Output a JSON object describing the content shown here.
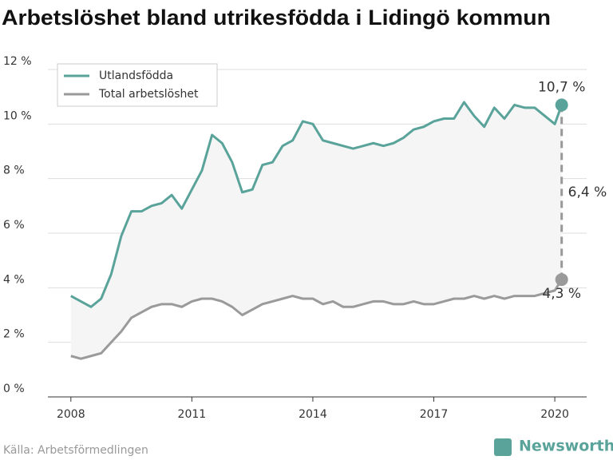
{
  "chart_data": {
    "type": "line",
    "title": "Arbetslöshet bland utrikesfödda i Lidingö kommun",
    "source": "Källa: Arbetsförmedlingen",
    "brand": "Newsworthy",
    "x": [
      2008.0,
      2008.25,
      2008.5,
      2008.75,
      2009.0,
      2009.25,
      2009.5,
      2009.75,
      2010.0,
      2010.25,
      2010.5,
      2010.75,
      2011.0,
      2011.25,
      2011.5,
      2011.75,
      2012.0,
      2012.25,
      2012.5,
      2012.75,
      2013.0,
      2013.25,
      2013.5,
      2013.75,
      2014.0,
      2014.25,
      2014.5,
      2014.75,
      2015.0,
      2015.25,
      2015.5,
      2015.75,
      2016.0,
      2016.25,
      2016.5,
      2016.75,
      2017.0,
      2017.25,
      2017.5,
      2017.75,
      2018.0,
      2018.25,
      2018.5,
      2018.75,
      2019.0,
      2019.25,
      2019.5,
      2019.75,
      2020.0,
      2020.17
    ],
    "series": [
      {
        "name": "Utlandsfödda",
        "color": "#5aa39a",
        "end_label": "10,7 %",
        "values": [
          3.7,
          3.5,
          3.3,
          3.6,
          4.5,
          5.9,
          6.8,
          6.8,
          7.0,
          7.1,
          7.4,
          6.9,
          7.6,
          8.3,
          9.6,
          9.3,
          8.6,
          7.5,
          7.6,
          8.5,
          8.6,
          9.2,
          9.4,
          10.1,
          10.0,
          9.4,
          9.3,
          9.2,
          9.1,
          9.2,
          9.3,
          9.2,
          9.3,
          9.5,
          9.8,
          9.9,
          10.1,
          10.2,
          10.2,
          10.8,
          10.3,
          9.9,
          10.6,
          10.2,
          10.7,
          10.6,
          10.6,
          10.3,
          10.0,
          10.7
        ]
      },
      {
        "name": "Total arbetslöshet",
        "color": "#9a9a9a",
        "end_label": "4,3 %",
        "values": [
          1.5,
          1.4,
          1.5,
          1.6,
          2.0,
          2.4,
          2.9,
          3.1,
          3.3,
          3.4,
          3.4,
          3.3,
          3.5,
          3.6,
          3.6,
          3.5,
          3.3,
          3.0,
          3.2,
          3.4,
          3.5,
          3.6,
          3.7,
          3.6,
          3.6,
          3.4,
          3.5,
          3.3,
          3.3,
          3.4,
          3.5,
          3.5,
          3.4,
          3.4,
          3.5,
          3.4,
          3.4,
          3.5,
          3.6,
          3.6,
          3.7,
          3.6,
          3.7,
          3.6,
          3.7,
          3.7,
          3.7,
          3.8,
          3.9,
          4.3
        ]
      }
    ],
    "difference_label": "6,4 %",
    "xlim": [
      2007.43,
      2020.79
    ],
    "xticks": [
      2008,
      2011,
      2014,
      2017,
      2020
    ],
    "ylim": [
      0,
      12
    ],
    "yticks": [
      {
        "value": 0,
        "label": "0 %"
      },
      {
        "value": 2,
        "label": "2 %"
      },
      {
        "value": 4,
        "label": "4 %"
      },
      {
        "value": 6,
        "label": "6 %"
      },
      {
        "value": 8,
        "label": "8 %"
      },
      {
        "value": 10,
        "label": "10 %"
      },
      {
        "value": 12,
        "label": "12 %"
      }
    ],
    "grid": true,
    "legend": "upper left"
  }
}
